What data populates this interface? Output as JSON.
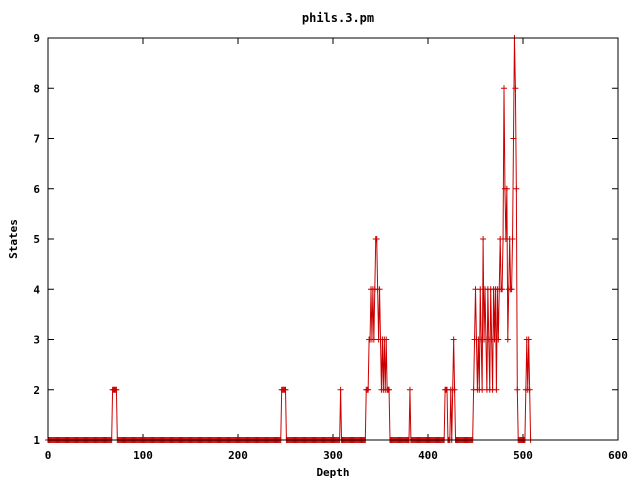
{
  "chart_data": {
    "type": "line",
    "title": "phils.3.pm",
    "xlabel": "Depth",
    "ylabel": "States",
    "xlim": [
      0,
      600
    ],
    "ylim": [
      1,
      9
    ],
    "xticks": [
      "0",
      "100",
      "200",
      "300",
      "400",
      "500",
      "600"
    ],
    "yticks": [
      "1",
      "2",
      "3",
      "4",
      "5",
      "6",
      "7",
      "8",
      "9"
    ],
    "grid": false,
    "legend": "none",
    "marker": "plus",
    "color": "#cc0000",
    "series": [
      {
        "points": [
          [
            0,
            1
          ],
          [
            67,
            1
          ],
          [
            68,
            2
          ],
          [
            72,
            2
          ],
          [
            73,
            1
          ],
          [
            245,
            1
          ],
          [
            246,
            2
          ],
          [
            250,
            2
          ],
          [
            251,
            1
          ],
          [
            307,
            1
          ],
          [
            308,
            2
          ],
          [
            309,
            1
          ],
          [
            334,
            1
          ],
          [
            335,
            2
          ],
          [
            337,
            2
          ],
          [
            338,
            3
          ],
          [
            339,
            3
          ],
          [
            340,
            4
          ],
          [
            341,
            3
          ],
          [
            342,
            4
          ],
          [
            343,
            3
          ],
          [
            344,
            4
          ],
          [
            345,
            5
          ],
          [
            346,
            5
          ],
          [
            347,
            4
          ],
          [
            348,
            3
          ],
          [
            349,
            4
          ],
          [
            350,
            3
          ],
          [
            351,
            2
          ],
          [
            352,
            3
          ],
          [
            353,
            2
          ],
          [
            354,
            3
          ],
          [
            355,
            2
          ],
          [
            356,
            3
          ],
          [
            357,
            2
          ],
          [
            358,
            2
          ],
          [
            359,
            2
          ],
          [
            360,
            1
          ],
          [
            380,
            1
          ],
          [
            381,
            2
          ],
          [
            382,
            1
          ],
          [
            417,
            1
          ],
          [
            418,
            2
          ],
          [
            420,
            2
          ],
          [
            421,
            1
          ],
          [
            423,
            1
          ],
          [
            424,
            2
          ],
          [
            425,
            1
          ],
          [
            426,
            2
          ],
          [
            427,
            3
          ],
          [
            428,
            2
          ],
          [
            429,
            1
          ],
          [
            447,
            1
          ],
          [
            448,
            2
          ],
          [
            449,
            3
          ],
          [
            450,
            4
          ],
          [
            451,
            3
          ],
          [
            452,
            2
          ],
          [
            453,
            3
          ],
          [
            454,
            2
          ],
          [
            455,
            4
          ],
          [
            456,
            3
          ],
          [
            457,
            2
          ],
          [
            458,
            5
          ],
          [
            459,
            3
          ],
          [
            460,
            4
          ],
          [
            461,
            3
          ],
          [
            462,
            2
          ],
          [
            463,
            4
          ],
          [
            464,
            3
          ],
          [
            465,
            2
          ],
          [
            466,
            4
          ],
          [
            467,
            3
          ],
          [
            468,
            2
          ],
          [
            469,
            4
          ],
          [
            470,
            3
          ],
          [
            471,
            4
          ],
          [
            472,
            2
          ],
          [
            473,
            4
          ],
          [
            474,
            3
          ],
          [
            475,
            4
          ],
          [
            476,
            5
          ],
          [
            477,
            4
          ],
          [
            478,
            4
          ],
          [
            479,
            5
          ],
          [
            480,
            8
          ],
          [
            481,
            6
          ],
          [
            482,
            5
          ],
          [
            483,
            6
          ],
          [
            484,
            3
          ],
          [
            485,
            4
          ],
          [
            486,
            5
          ],
          [
            487,
            4
          ],
          [
            488,
            4
          ],
          [
            489,
            5
          ],
          [
            490,
            7
          ],
          [
            491,
            9
          ],
          [
            492,
            8
          ],
          [
            493,
            6
          ],
          [
            494,
            2
          ],
          [
            495,
            1
          ],
          [
            502,
            1
          ],
          [
            503,
            2
          ],
          [
            504,
            3
          ],
          [
            505,
            2
          ],
          [
            506,
            3
          ],
          [
            507,
            2
          ],
          [
            508,
            1
          ]
        ]
      }
    ]
  }
}
